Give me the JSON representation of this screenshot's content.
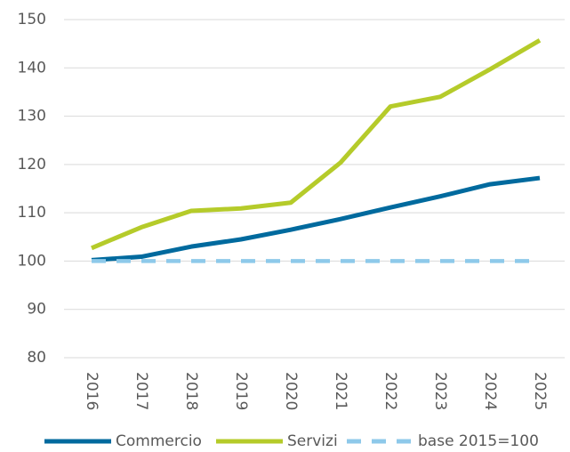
{
  "chart_data": {
    "type": "line",
    "categories": [
      "2016",
      "2017",
      "2018",
      "2019",
      "2020",
      "2021",
      "2022",
      "2023",
      "2024",
      "2025"
    ],
    "series": [
      {
        "name": "Commercio",
        "color": "#006a9e",
        "values": [
          100.2,
          100.9,
          103,
          104.5,
          106.5,
          108.7,
          111.1,
          113.4,
          115.9,
          117.2
        ]
      },
      {
        "name": "Servizi",
        "color": "#b5cb2a",
        "values": [
          102.7,
          107,
          110.4,
          110.9,
          112.1,
          120.4,
          132,
          134,
          139.7,
          145.7
        ]
      },
      {
        "name": "base 2015=100",
        "color": "#8ec9ea",
        "dashed": true,
        "values": [
          100,
          100,
          100,
          100,
          100,
          100,
          100,
          100,
          100,
          100
        ]
      }
    ],
    "ylim": [
      80,
      150
    ],
    "yticks": [
      80,
      90,
      100,
      110,
      120,
      130,
      140,
      150
    ],
    "grid": true,
    "legend": "bottom"
  }
}
